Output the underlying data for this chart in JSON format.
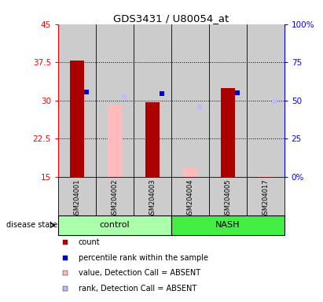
{
  "title": "GDS3431 / U80054_at",
  "samples": [
    "GSM204001",
    "GSM204002",
    "GSM204003",
    "GSM204004",
    "GSM204005",
    "GSM204017"
  ],
  "groups": [
    "control",
    "control",
    "control",
    "NASH",
    "NASH",
    "NASH"
  ],
  "ylim_left": [
    15,
    45
  ],
  "yticks_left": [
    15,
    22.5,
    30,
    37.5,
    45
  ],
  "ytick_labels_left": [
    "15",
    "22.5",
    "30",
    "37.5",
    "45"
  ],
  "ytick_labels_right": [
    "0%",
    "25",
    "50",
    "75",
    "100%"
  ],
  "right_tick_positions": [
    15,
    22.5,
    30,
    37.5,
    45
  ],
  "count_values": [
    37.8,
    null,
    29.7,
    null,
    32.5,
    null
  ],
  "percentile_values": [
    31.7,
    null,
    31.3,
    null,
    31.5,
    null
  ],
  "absent_value_values": [
    null,
    29.2,
    null,
    16.6,
    null,
    15.2
  ],
  "absent_rank_values": [
    null,
    30.7,
    null,
    28.7,
    null,
    29.8
  ],
  "bar_bottom": 15,
  "bar_width": 0.25,
  "marker_size": 4,
  "color_count": "#aa0000",
  "color_percentile": "#0000cc",
  "color_absent_value": "#ffbbbb",
  "color_absent_rank": "#bbbbff",
  "color_control_light": "#aaffaa",
  "color_control_dark": "#aaffaa",
  "color_nash_dark": "#44ee44",
  "color_sample_bg": "#cccccc",
  "color_white": "#ffffff",
  "legend_items": [
    {
      "label": "count",
      "color": "#aa0000"
    },
    {
      "label": "percentile rank within the sample",
      "color": "#0000cc"
    },
    {
      "label": "value, Detection Call = ABSENT",
      "color": "#ffbbbb"
    },
    {
      "label": "rank, Detection Call = ABSENT",
      "color": "#bbbbff"
    }
  ]
}
